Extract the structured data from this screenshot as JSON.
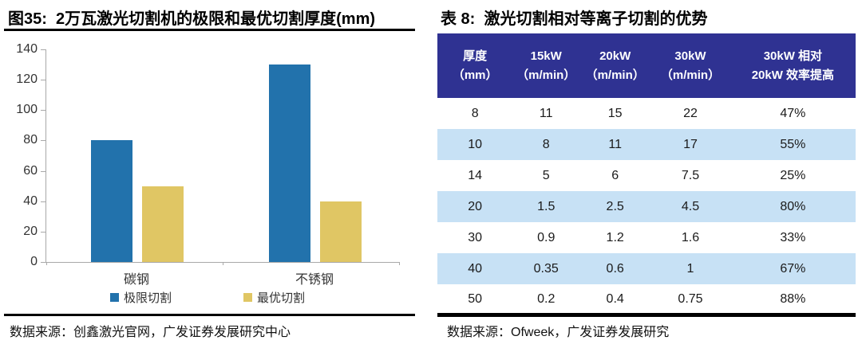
{
  "chart_data": [
    {
      "type": "bar",
      "title": "图35:  2万瓦激光切割机的极限和最优切割厚度(mm)",
      "categories": [
        "碳钢",
        "不锈钢"
      ],
      "series": [
        {
          "name": "极限切割",
          "color": "#2272ac",
          "values": [
            80,
            130
          ]
        },
        {
          "name": "最优切割",
          "color": "#e0c664",
          "values": [
            50,
            40
          ]
        }
      ],
      "ylim": [
        0,
        140
      ],
      "ytick_step": 20,
      "grid": false,
      "legend_position": "bottom",
      "source": "数据来源：创鑫激光官网，广发证券发展研究中心"
    },
    {
      "type": "table",
      "title": "表 8:  激光切割相对等离子切割的优势",
      "header_bg": "#2f3292",
      "stripe_bg": "#c7e1f5",
      "columns": [
        {
          "line1": "厚度",
          "line2": "（mm）"
        },
        {
          "line1": "15kW",
          "line2": "（m/min）"
        },
        {
          "line1": "20kW",
          "line2": "（m/min）"
        },
        {
          "line1": "30kW",
          "line2": "（m/min）"
        },
        {
          "line1": "30kW 相对",
          "line2": "20kW 效率提高"
        }
      ],
      "rows": [
        [
          "8",
          "11",
          "15",
          "22",
          "47%"
        ],
        [
          "10",
          "8",
          "11",
          "17",
          "55%"
        ],
        [
          "14",
          "5",
          "6",
          "7.5",
          "25%"
        ],
        [
          "20",
          "1.5",
          "2.5",
          "4.5",
          "80%"
        ],
        [
          "30",
          "0.9",
          "1.2",
          "1.6",
          "33%"
        ],
        [
          "40",
          "0.35",
          "0.6",
          "1",
          "67%"
        ],
        [
          "50",
          "0.2",
          "0.4",
          "0.75",
          "88%"
        ]
      ],
      "source": "数据来源：Ofweek，广发证券发展研究"
    }
  ]
}
